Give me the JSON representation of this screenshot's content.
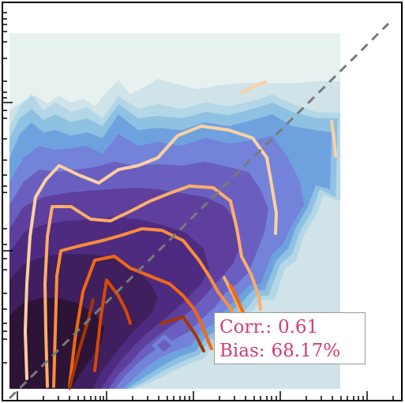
{
  "chart_data": {
    "type": "contour",
    "title": "",
    "xlabel": "",
    "ylabel": "",
    "x_scale": "log",
    "y_scale": "log",
    "grid": false,
    "legend": "none",
    "reference_line": "y = x (dashed gray)",
    "density_colormap": [
      "#e6f1f0",
      "#cfe3e8",
      "#b3d7e6",
      "#8fc1e2",
      "#6ea2df",
      "#7383d9",
      "#6a5fc0",
      "#5e3f9e",
      "#4e2b80",
      "#3f1f5e",
      "#2d1436"
    ],
    "percentile_line_colors": [
      "#fdd0a2",
      "#fdae6b",
      "#fd8d3c",
      "#f16913",
      "#d94801",
      "#a63603",
      "#7f2704"
    ],
    "stats": {
      "corr_label": "Corr.:",
      "corr_value": "0.61",
      "bias_label": "Bias:",
      "bias_value": "68.17%"
    }
  },
  "colors": {
    "axis": "#000000",
    "diagonal": "#7a7a7a",
    "stats_text": "#d23c78",
    "stats_border": "#9a9a9a"
  }
}
